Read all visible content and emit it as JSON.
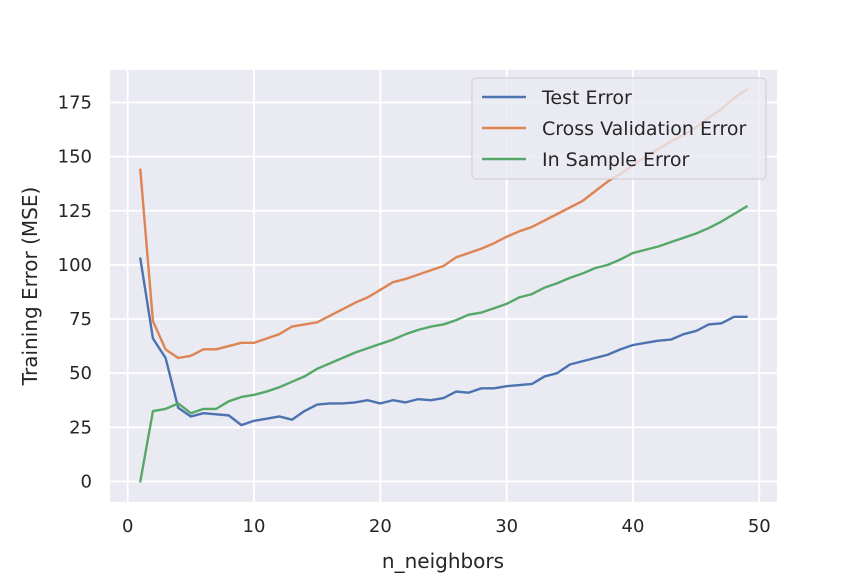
{
  "chart_data": {
    "type": "line",
    "title": "",
    "xlabel": "n_neighbors",
    "ylabel": "Training Error (MSE)",
    "xlim": [
      -1.4,
      51.4
    ],
    "ylim": [
      -9.5,
      190
    ],
    "xticks": [
      0,
      10,
      20,
      30,
      40,
      50
    ],
    "yticks": [
      0,
      25,
      50,
      75,
      100,
      125,
      150,
      175
    ],
    "grid": true,
    "legend_position": "top-right",
    "x": [
      1,
      2,
      3,
      4,
      5,
      6,
      7,
      8,
      9,
      10,
      11,
      12,
      13,
      14,
      15,
      16,
      17,
      18,
      19,
      20,
      21,
      22,
      23,
      24,
      25,
      26,
      27,
      28,
      29,
      30,
      31,
      32,
      33,
      34,
      35,
      36,
      37,
      38,
      39,
      40,
      41,
      42,
      43,
      44,
      45,
      46,
      47,
      48,
      49
    ],
    "series": [
      {
        "name": "Test Error",
        "color": "#4c72b0",
        "values": [
          103,
          66,
          57,
          34,
          30,
          31.5,
          31,
          30.5,
          26,
          28,
          29,
          30,
          28.5,
          32.5,
          35.5,
          36,
          36,
          36.5,
          37.5,
          36,
          37.5,
          36.5,
          38,
          37.5,
          38.5,
          41.5,
          41,
          43,
          43,
          44,
          44.5,
          45,
          48.5,
          50,
          54,
          55.5,
          57,
          58.5,
          61,
          63,
          64,
          65,
          65.5,
          68,
          69.5,
          72.5,
          73,
          76,
          76
        ]
      },
      {
        "name": "Cross Validation Error",
        "color": "#dd8452",
        "values": [
          144,
          74,
          61,
          57,
          58,
          61,
          61,
          62.5,
          64,
          64,
          66,
          68,
          71.5,
          72.5,
          73.5,
          76.5,
          79.5,
          82.5,
          85,
          88.5,
          92,
          93.5,
          95.5,
          97.5,
          99.5,
          103.5,
          105.5,
          107.5,
          110,
          113,
          115.5,
          117.5,
          120.5,
          123.5,
          126.5,
          129.5,
          134,
          138.5,
          142,
          146,
          150,
          153.5,
          157,
          160,
          163.5,
          168,
          172,
          177,
          181
        ]
      },
      {
        "name": "In Sample Error",
        "color": "#55a868",
        "values": [
          0,
          32.5,
          33.5,
          36,
          31.5,
          33.5,
          33.5,
          37,
          39,
          40,
          41.5,
          43.5,
          46,
          48.5,
          52,
          54.5,
          57,
          59.5,
          61.5,
          63.5,
          65.5,
          68,
          70,
          71.5,
          72.5,
          74.5,
          77,
          78,
          80,
          82,
          85,
          86.5,
          89.5,
          91.5,
          94,
          96,
          98.5,
          100,
          102.5,
          105.5,
          107,
          108.5,
          110.5,
          112.5,
          114.5,
          117,
          120,
          123.5,
          127
        ]
      }
    ]
  }
}
